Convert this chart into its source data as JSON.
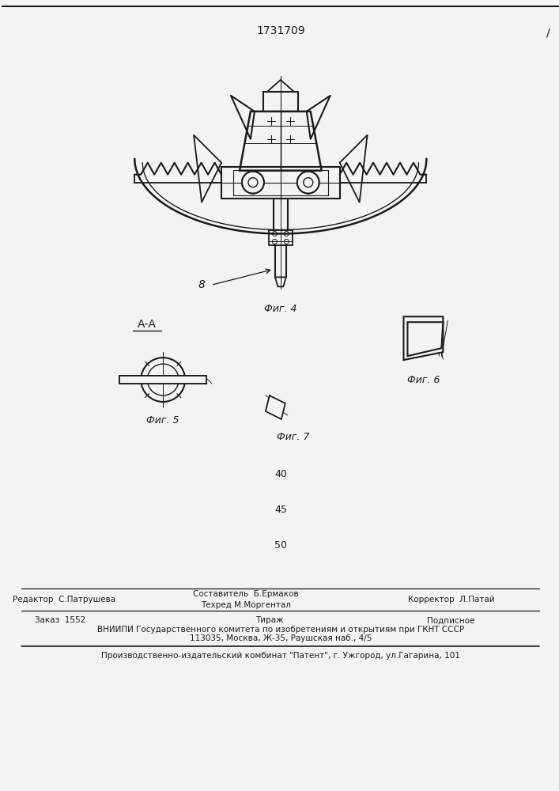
{
  "patent_number": "1731709",
  "background_color": "#f5f3ef",
  "line_color": "#1a1a1a",
  "fig4_label": "Фиг. 4",
  "fig5_label": "Фиг. 5",
  "fig6_label": "Фиг. 6",
  "fig7_label": "Фиг. 7",
  "aa_label": "А-А",
  "num_8_label": "8",
  "num_40": "40",
  "num_45": "45",
  "num_50": "50",
  "vniip_line1": "ВНИИПИ Государственного комитета по изобретениям и открытиям при ГКНТ СССР",
  "vniip_line2": "113035, Москва, Ж-35, Раушская наб., 4/5",
  "production_line": "Производственно-издательский комбинат \"Патент\", г. Ужгород, ул.Гагарина, 101",
  "page_num_slash": "/"
}
